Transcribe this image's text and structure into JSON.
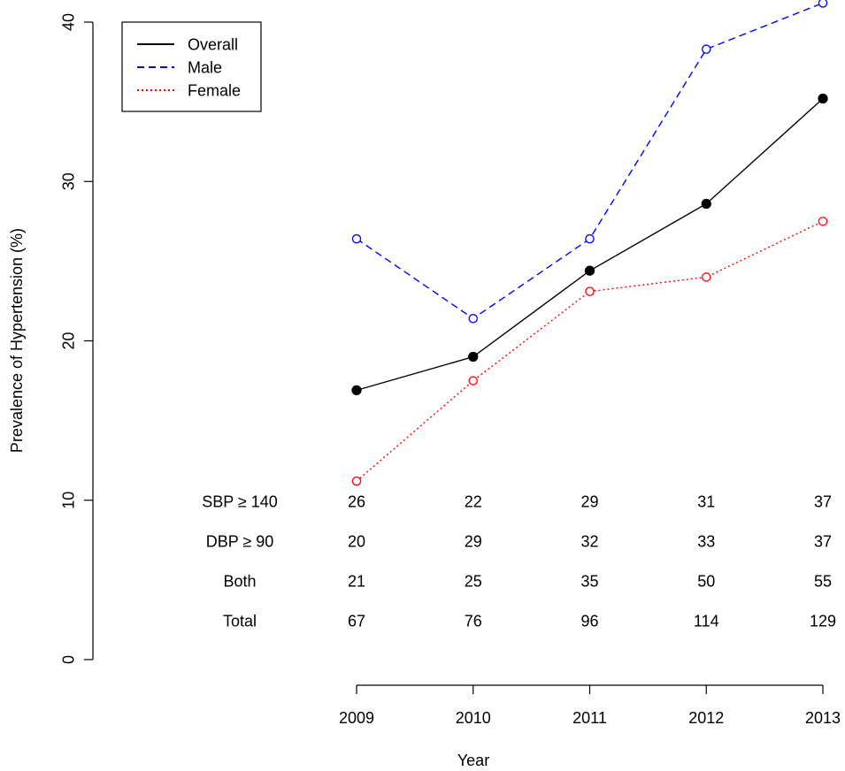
{
  "chart_data": {
    "type": "line",
    "title": "",
    "xlabel": "Year",
    "ylabel": "Prevalence of Hypertension (%)",
    "x": [
      2009,
      2010,
      2011,
      2012,
      2013
    ],
    "xlim": [
      2009,
      2013
    ],
    "ylim": [
      0,
      40
    ],
    "yticks": [
      0,
      10,
      20,
      30,
      40
    ],
    "xticks": [
      "2009",
      "2010",
      "2011",
      "2012",
      "2013"
    ],
    "grid": false,
    "legend_position": "top-left",
    "series": [
      {
        "name": "Overall",
        "color": "#000000",
        "style": "solid",
        "marker": "filled-circle",
        "values": [
          16.9,
          19.0,
          24.4,
          28.6,
          35.2
        ]
      },
      {
        "name": "Male",
        "color": "#0000ff",
        "style": "dashed",
        "marker": "open-circle",
        "values": [
          26.4,
          21.4,
          26.4,
          38.3,
          41.2
        ]
      },
      {
        "name": "Female",
        "color": "#ff0000",
        "style": "dotted",
        "marker": "open-circle",
        "values": [
          11.2,
          17.5,
          23.1,
          24.0,
          27.5
        ]
      }
    ],
    "table": {
      "rows": [
        {
          "label": "SBP ≥ 140",
          "values": [
            26,
            22,
            29,
            31,
            37
          ]
        },
        {
          "label": "DBP ≥ 90",
          "values": [
            20,
            29,
            32,
            33,
            37
          ]
        },
        {
          "label": "Both",
          "values": [
            21,
            25,
            35,
            50,
            55
          ]
        },
        {
          "label": "Total",
          "values": [
            67,
            76,
            96,
            114,
            129
          ]
        }
      ]
    }
  }
}
